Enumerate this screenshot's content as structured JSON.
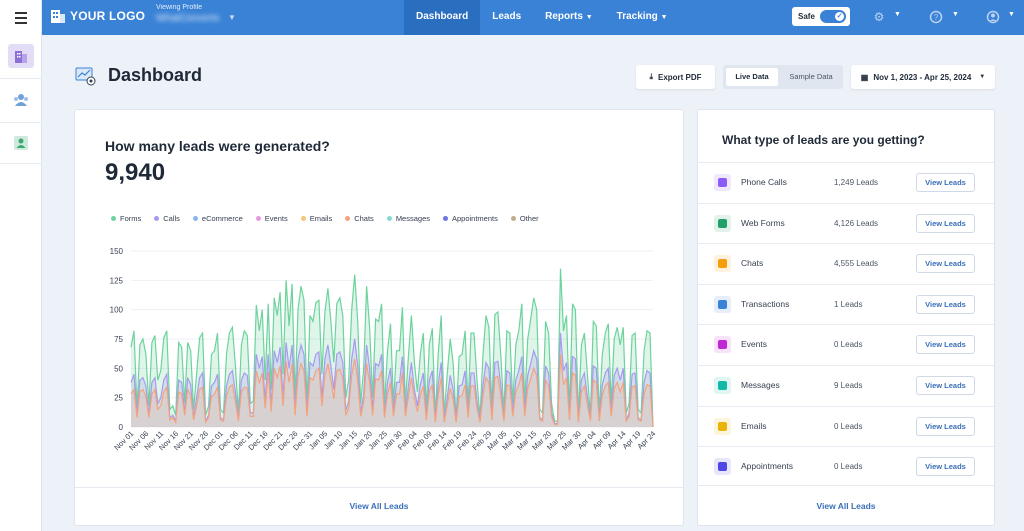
{
  "topbar": {
    "logo_text": "YOUR LOGO",
    "viewing_label": "Viewing Profile",
    "profile_name": "WhatConverts",
    "nav": [
      "Dashboard",
      "Leads",
      "Reports",
      "Tracking"
    ],
    "safe_label": "Safe",
    "accent": "#3a82d6"
  },
  "page": {
    "title": "Dashboard",
    "export_label": "Export PDF",
    "live_label": "Live Data",
    "sample_label": "Sample Data",
    "date_range": "Nov 1, 2023 - Apr 25, 2024"
  },
  "leads_card": {
    "title": "How many leads were generated?",
    "total": "9,940",
    "footer": "View All Leads"
  },
  "types_card": {
    "title": "What type of leads are you getting?",
    "footer": "View All Leads",
    "button_label": "View Leads",
    "rows": [
      {
        "name": "Phone Calls",
        "count": "1,249 Leads",
        "icon": "phone-icon",
        "color": "#8b5cf6"
      },
      {
        "name": "Web Forms",
        "count": "4,126 Leads",
        "icon": "form-icon",
        "color": "#22a06b"
      },
      {
        "name": "Chats",
        "count": "4,555 Leads",
        "icon": "chat-icon",
        "color": "#f59e0b"
      },
      {
        "name": "Transactions",
        "count": "1 Leads",
        "icon": "transaction-icon",
        "color": "#3a82d6"
      },
      {
        "name": "Events",
        "count": "0 Leads",
        "icon": "event-icon",
        "color": "#c026d3"
      },
      {
        "name": "Messages",
        "count": "9 Leads",
        "icon": "message-icon",
        "color": "#14b8a6"
      },
      {
        "name": "Emails",
        "count": "0 Leads",
        "icon": "email-icon",
        "color": "#eab308"
      },
      {
        "name": "Appointments",
        "count": "0 Leads",
        "icon": "calendar-icon",
        "color": "#4f46e5"
      }
    ]
  },
  "chart_data": {
    "type": "area",
    "title": "How many leads were generated?",
    "ylim": [
      0,
      150
    ],
    "yticks": [
      0,
      25,
      50,
      75,
      100,
      125,
      150
    ],
    "x_tick_labels": [
      "Nov 01",
      "Nov 06",
      "Nov 11",
      "Nov 16",
      "Nov 21",
      "Nov 26",
      "Dec 01",
      "Dec 06",
      "Dec 11",
      "Dec 16",
      "Dec 21",
      "Dec 26",
      "Dec 31",
      "Jan 05",
      "Jan 10",
      "Jan 15",
      "Jan 20",
      "Jan 25",
      "Jan 30",
      "Feb 04",
      "Feb 09",
      "Feb 14",
      "Feb 19",
      "Feb 24",
      "Feb 29",
      "Mar 05",
      "Mar 10",
      "Mar 15",
      "Mar 20",
      "Mar 25",
      "Mar 30",
      "Apr 04",
      "Apr 09",
      "Apr 14",
      "Apr 19",
      "Apr 24"
    ],
    "legend": [
      {
        "name": "Forms",
        "color": "#6dd39c"
      },
      {
        "name": "Calls",
        "color": "#a79af0"
      },
      {
        "name": "eCommerce",
        "color": "#8ab4f0"
      },
      {
        "name": "Events",
        "color": "#e59ae0"
      },
      {
        "name": "Emails",
        "color": "#f6c57a"
      },
      {
        "name": "Chats",
        "color": "#f3a37c"
      },
      {
        "name": "Messages",
        "color": "#88d8d4"
      },
      {
        "name": "Appointments",
        "color": "#6e73e6"
      },
      {
        "name": "Other",
        "color": "#bfae8e"
      }
    ],
    "series": [
      {
        "name": "Forms",
        "color": "#6dd39c",
        "values": [
          68,
          82,
          15,
          70,
          75,
          62,
          18,
          72,
          78,
          40,
          48,
          76,
          82,
          15,
          18,
          10,
          72,
          68,
          20,
          72,
          65,
          15,
          45,
          76,
          80,
          10,
          18,
          62,
          65,
          80,
          15,
          12,
          62,
          80,
          85,
          52,
          12,
          70,
          82,
          78,
          20,
          22,
          104,
          82,
          100,
          40,
          105,
          32,
          110,
          95,
          115,
          45,
          125,
          86,
          122,
          25,
          100,
          120,
          108,
          20,
          95,
          90,
          106,
          108,
          45,
          98,
          118,
          90,
          55,
          105,
          110,
          95,
          25,
          40,
          100,
          130,
          90,
          20,
          50,
          120,
          85,
          25,
          92,
          90,
          105,
          18,
          65,
          88,
          20,
          65,
          65,
          102,
          20,
          60,
          95,
          55,
          30,
          62,
          80,
          15,
          70,
          84,
          8,
          62,
          95,
          10,
          45,
          75,
          55,
          8,
          60,
          62,
          82,
          18,
          80,
          80,
          40,
          8,
          62,
          95,
          85,
          15,
          96,
          98,
          60,
          12,
          82,
          80,
          20,
          70,
          82,
          105,
          20,
          75,
          92,
          110,
          100,
          15,
          12,
          90,
          80,
          20,
          5,
          5,
          135,
          82,
          95,
          15,
          105,
          100,
          10,
          70,
          80,
          45,
          10,
          90,
          86,
          12,
          62,
          80,
          88,
          20,
          75,
          85,
          70,
          85,
          12,
          20,
          78,
          80,
          15,
          12,
          65,
          82,
          80,
          0
        ]
      },
      {
        "name": "Calls",
        "color": "#a79af0",
        "values": [
          38,
          45,
          10,
          40,
          42,
          35,
          10,
          38,
          42,
          20,
          25,
          40,
          45,
          8,
          10,
          5,
          40,
          38,
          12,
          42,
          36,
          8,
          25,
          42,
          46,
          5,
          10,
          35,
          38,
          45,
          8,
          6,
          35,
          45,
          48,
          30,
          6,
          40,
          46,
          44,
          12,
          12,
          62,
          50,
          60,
          22,
          62,
          18,
          65,
          55,
          68,
          25,
          72,
          50,
          70,
          14,
          58,
          70,
          62,
          12,
          55,
          52,
          62,
          64,
          25,
          58,
          70,
          52,
          32,
          62,
          64,
          55,
          14,
          22,
          58,
          75,
          52,
          12,
          28,
          70,
          50,
          14,
          54,
          52,
          62,
          10,
          38,
          50,
          12,
          38,
          38,
          60,
          12,
          35,
          55,
          32,
          18,
          36,
          46,
          8,
          40,
          48,
          5,
          36,
          55,
          5,
          25,
          44,
          32,
          5,
          35,
          36,
          48,
          10,
          46,
          46,
          22,
          5,
          36,
          55,
          50,
          8,
          55,
          56,
          35,
          6,
          48,
          46,
          12,
          40,
          48,
          60,
          12,
          44,
          54,
          65,
          58,
          8,
          6,
          52,
          46,
          12,
          3,
          3,
          80,
          48,
          55,
          8,
          60,
          58,
          5,
          40,
          46,
          26,
          6,
          52,
          50,
          6,
          36,
          46,
          50,
          12,
          44,
          50,
          40,
          50,
          6,
          12,
          45,
          46,
          8,
          6,
          38,
          48,
          46,
          0
        ]
      },
      {
        "name": "Chats",
        "color": "#f3a37c",
        "values": [
          28,
          32,
          8,
          30,
          32,
          26,
          8,
          28,
          32,
          15,
          18,
          30,
          34,
          6,
          8,
          4,
          30,
          28,
          10,
          32,
          27,
          6,
          18,
          32,
          34,
          4,
          8,
          26,
          28,
          34,
          6,
          5,
          26,
          34,
          36,
          22,
          5,
          30,
          34,
          33,
          9,
          9,
          48,
          38,
          46,
          16,
          47,
          13,
          50,
          42,
          52,
          18,
          56,
          38,
          54,
          10,
          44,
          54,
          48,
          9,
          42,
          40,
          48,
          50,
          18,
          44,
          54,
          40,
          24,
          48,
          49,
          42,
          10,
          16,
          44,
          58,
          40,
          9,
          21,
          54,
          38,
          10,
          41,
          40,
          48,
          8,
          28,
          38,
          9,
          28,
          28,
          46,
          9,
          26,
          42,
          24,
          13,
          27,
          35,
          6,
          30,
          36,
          4,
          27,
          42,
          4,
          18,
          33,
          24,
          4,
          26,
          27,
          36,
          8,
          35,
          35,
          16,
          4,
          27,
          42,
          38,
          6,
          42,
          43,
          26,
          5,
          36,
          35,
          9,
          30,
          36,
          46,
          9,
          33,
          41,
          50,
          44,
          6,
          5,
          40,
          35,
          9,
          2,
          2,
          62,
          36,
          42,
          6,
          46,
          44,
          4,
          30,
          35,
          19,
          5,
          40,
          38,
          5,
          27,
          35,
          38,
          9,
          33,
          38,
          30,
          38,
          5,
          9,
          34,
          35,
          6,
          5,
          28,
          36,
          35,
          0
        ]
      }
    ]
  }
}
